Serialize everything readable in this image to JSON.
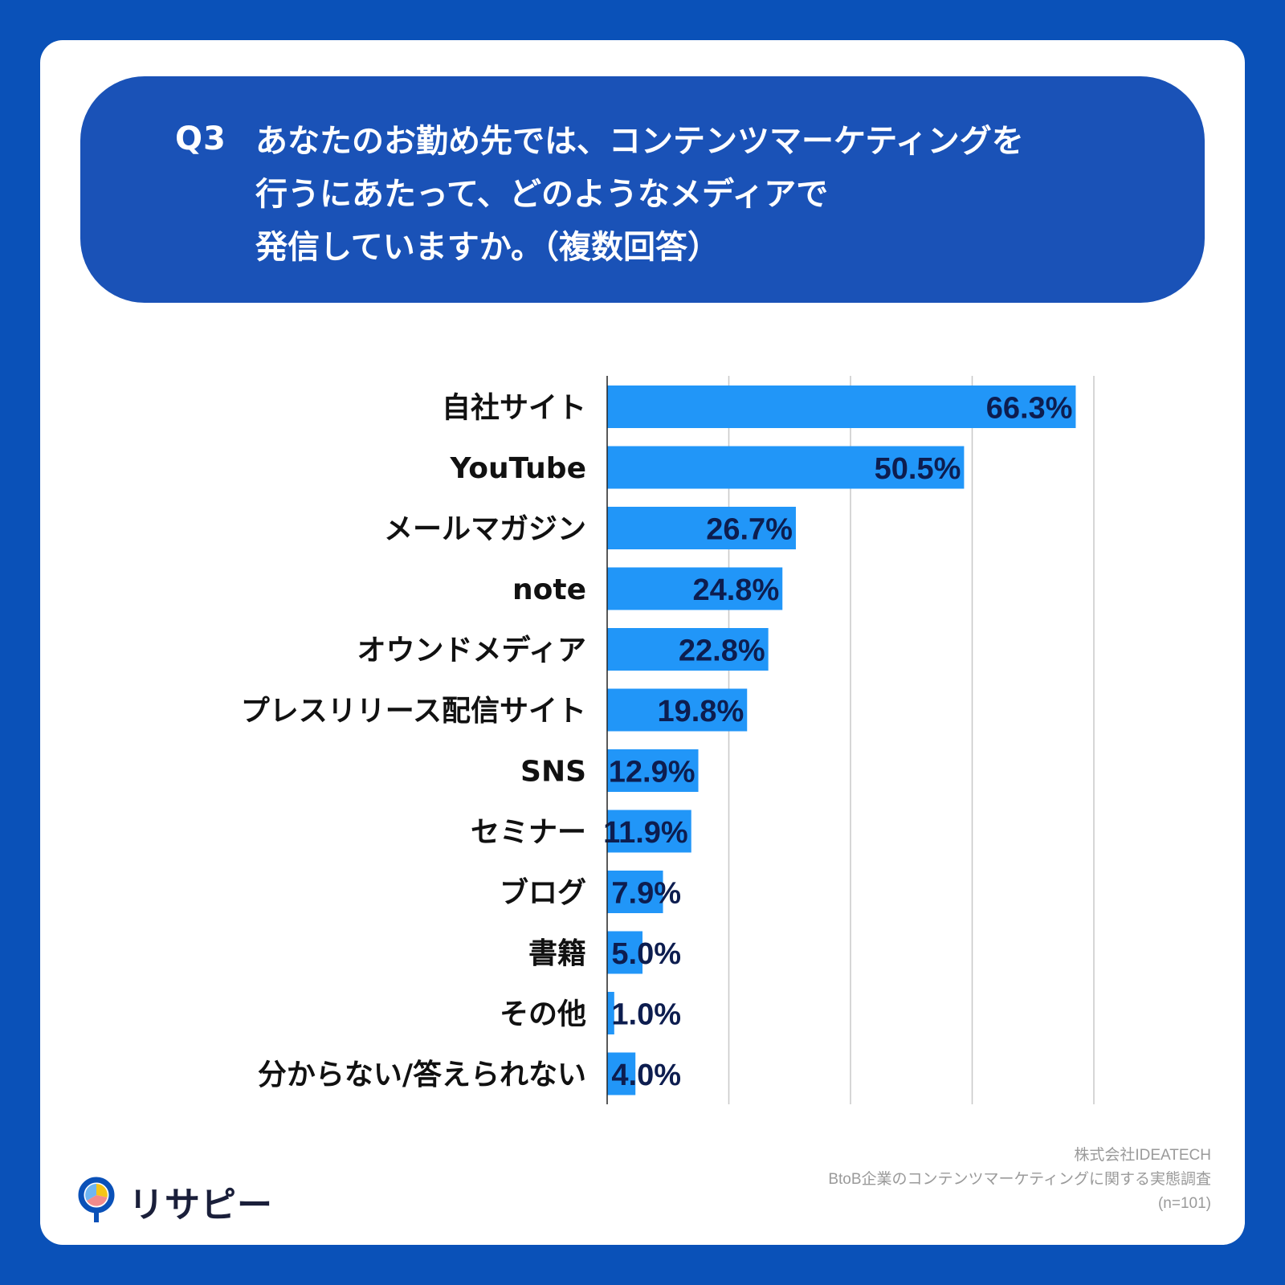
{
  "question": {
    "number": "Q3",
    "text": "あなたのお勤め先では、コンテンツマーケティングを\n行うにあたって、どのようなメディアで\n発信していますか。（複数回答）"
  },
  "colors": {
    "background": "#0a51b8",
    "question_box": "#1a52b7",
    "bar": "#2196f8",
    "value_label": "#0d1d4f",
    "category_label": "#111111",
    "grid": "#c8c8c8"
  },
  "chart_data": {
    "type": "bar",
    "orientation": "horizontal",
    "categories": [
      "自社サイト",
      "YouTube",
      "メールマガジン",
      "note",
      "オウンドメディア",
      "プレスリリース配信サイト",
      "SNS",
      "セミナー",
      "ブログ",
      "書籍",
      "その他",
      "分からない/答えられない"
    ],
    "values": [
      66.3,
      50.5,
      26.7,
      24.8,
      22.8,
      19.8,
      12.9,
      11.9,
      7.9,
      5.0,
      1.0,
      4.0
    ],
    "value_labels": [
      "66.3%",
      "50.5%",
      "26.7%",
      "24.8%",
      "22.8%",
      "19.8%",
      "12.9%",
      "11.9%",
      "7.9%",
      "5.0%",
      "1.0%",
      "4.0%"
    ],
    "xlim": [
      0,
      70
    ],
    "grid": true
  },
  "footer": {
    "line1": "株式会社IDEATECH",
    "line2": "BtoB企業のコンテンツマーケティングに関する実態調査",
    "line3": "(n=101)"
  },
  "logo": {
    "text": "リサピー",
    "mark": "magnifier-pie-icon"
  }
}
